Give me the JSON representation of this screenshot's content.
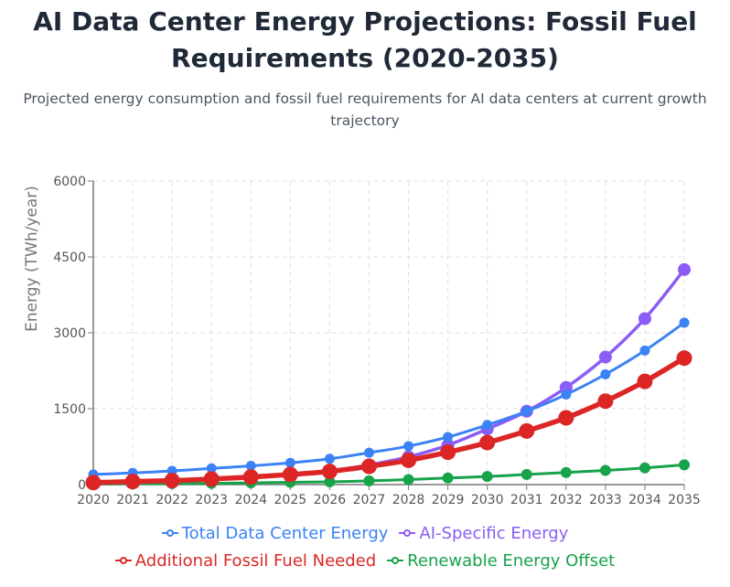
{
  "title": "AI Data Center Energy Projections: Fossil Fuel Requirements (2020-2035)",
  "subtitle": "Projected energy consumption and fossil fuel requirements for AI data centers at current growth trajectory",
  "chart_data": {
    "type": "line",
    "title": "AI Data Center Energy Projections: Fossil Fuel Requirements (2020-2035)",
    "subtitle": "Projected energy consumption and fossil fuel requirements for AI data centers at current growth trajectory",
    "xlabel": "",
    "ylabel": "Energy (TWh/year)",
    "x": [
      "2020",
      "2021",
      "2022",
      "2023",
      "2024",
      "2025",
      "2026",
      "2027",
      "2028",
      "2029",
      "2030",
      "2031",
      "2032",
      "2033",
      "2034",
      "2035"
    ],
    "ylim": [
      0,
      6000
    ],
    "yticks": [
      0,
      1500,
      3000,
      4500,
      6000
    ],
    "grid": true,
    "legend_position": "bottom",
    "series": [
      {
        "name": "Total Data Center Energy",
        "color": "#3b82f6",
        "values": [
          200,
          230,
          270,
          320,
          370,
          430,
          510,
          630,
          760,
          940,
          1180,
          1450,
          1780,
          2180,
          2650,
          3200
        ]
      },
      {
        "name": "AI-Specific Energy",
        "color": "#8b5cf6",
        "values": [
          40,
          60,
          80,
          110,
          150,
          200,
          270,
          390,
          550,
          780,
          1100,
          1450,
          1920,
          2520,
          3280,
          4250
        ]
      },
      {
        "name": "Additional Fossil Fuel Needed",
        "color": "#dc2626",
        "values": [
          40,
          60,
          80,
          110,
          150,
          200,
          260,
          360,
          480,
          640,
          830,
          1060,
          1320,
          1650,
          2040,
          2500
        ]
      },
      {
        "name": "Renewable Energy Offset",
        "color": "#16a34a",
        "values": [
          10,
          15,
          20,
          25,
          35,
          45,
          55,
          75,
          100,
          130,
          160,
          200,
          240,
          280,
          330,
          390
        ]
      }
    ]
  }
}
